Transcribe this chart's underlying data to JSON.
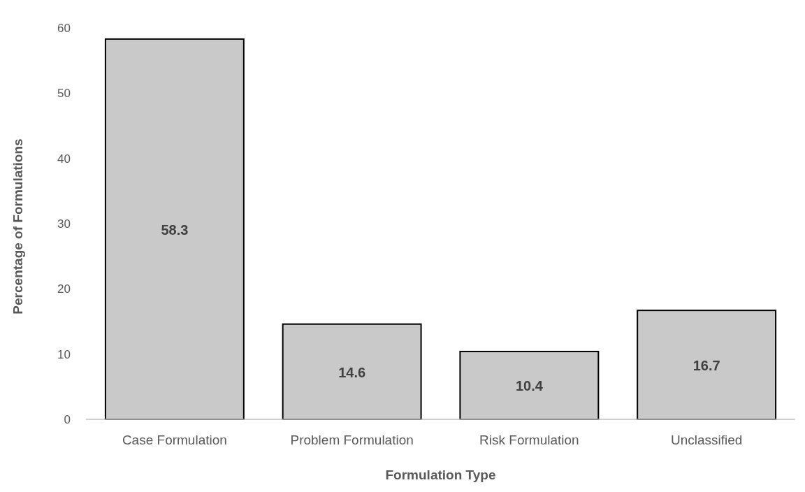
{
  "chart_data": {
    "type": "bar",
    "xlabel": "Formulation Type",
    "ylabel": "Percentage of Formulations",
    "categories": [
      "Case Formulation",
      "Problem Formulation",
      "Risk Formulation",
      "Unclassified"
    ],
    "values": [
      58.3,
      14.6,
      10.4,
      16.7
    ],
    "color": "#c9c9c9",
    "ylim": [
      0,
      60
    ],
    "yticks": [
      0,
      10,
      20,
      30,
      40,
      50,
      60
    ],
    "grid": false,
    "data_labels": true
  }
}
